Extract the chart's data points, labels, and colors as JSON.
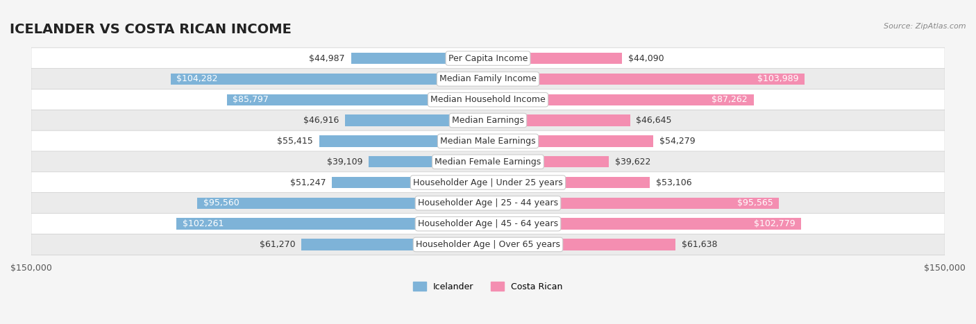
{
  "title": "ICELANDER VS COSTA RICAN INCOME",
  "source": "Source: ZipAtlas.com",
  "categories": [
    "Per Capita Income",
    "Median Family Income",
    "Median Household Income",
    "Median Earnings",
    "Median Male Earnings",
    "Median Female Earnings",
    "Householder Age | Under 25 years",
    "Householder Age | 25 - 44 years",
    "Householder Age | 45 - 64 years",
    "Householder Age | Over 65 years"
  ],
  "icelander_values": [
    44987,
    104282,
    85797,
    46916,
    55415,
    39109,
    51247,
    95560,
    102261,
    61270
  ],
  "costarican_values": [
    44090,
    103989,
    87262,
    46645,
    54279,
    39622,
    53106,
    95565,
    102779,
    61638
  ],
  "icelander_color": "#7EB3D8",
  "costarican_color": "#F48EB1",
  "icelander_label": "Icelander",
  "costarican_label": "Costa Rican",
  "max_value": 150000,
  "xlim": 150000,
  "bg_color": "#f5f5f5",
  "row_bg_even": "#ffffff",
  "row_bg_odd": "#f0f0f0",
  "bar_height": 0.55,
  "title_fontsize": 14,
  "label_fontsize": 9,
  "value_fontsize": 9,
  "axis_label_fontsize": 9
}
